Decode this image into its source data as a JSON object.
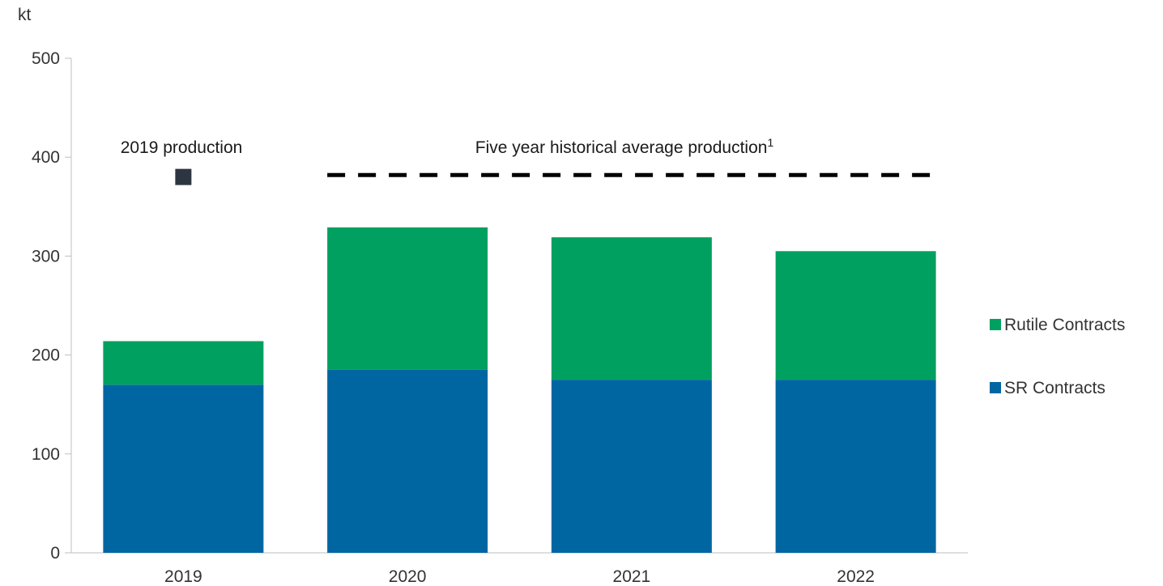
{
  "chart_data": {
    "type": "bar",
    "stacked": true,
    "y_unit_label": "kt",
    "categories": [
      "2019",
      "2020",
      "2021",
      "2022"
    ],
    "series": [
      {
        "name": "SR Contracts",
        "color": "#0066A1",
        "values": [
          170,
          185,
          175,
          175
        ]
      },
      {
        "name": "Rutile Contracts",
        "color": "#00A060",
        "values": [
          44,
          144,
          144,
          130
        ]
      }
    ],
    "ylim": [
      0,
      500
    ],
    "yticks": [
      0,
      100,
      200,
      300,
      400,
      500
    ],
    "grid": false,
    "legend_position": "right",
    "legend_order": [
      "Rutile Contracts",
      "SR Contracts"
    ],
    "annotations": {
      "production_2019": {
        "text": "2019 production",
        "value": 380,
        "category": "2019",
        "color": "#2D3640"
      },
      "historical_average": {
        "text": "Five year historical average production",
        "superscript": "1",
        "value": 382,
        "from_category": "2020",
        "to_category": "2022",
        "color": "#000000"
      }
    }
  }
}
